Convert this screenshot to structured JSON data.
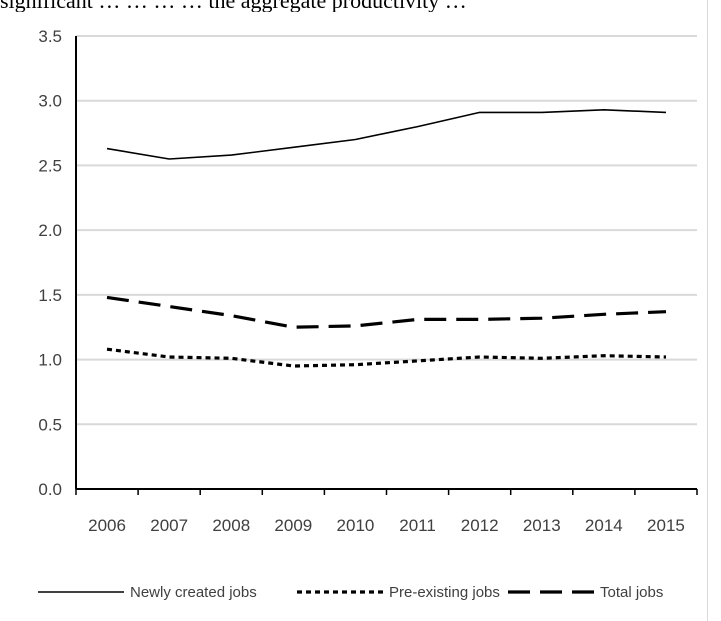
{
  "top_text": "significant … … … … the aggregate productivity …",
  "chart_data": {
    "type": "line",
    "title": "",
    "xlabel": "",
    "ylabel": "",
    "categories": [
      "2006",
      "2007",
      "2008",
      "2009",
      "2010",
      "2011",
      "2012",
      "2013",
      "2014",
      "2015"
    ],
    "ylim": [
      0,
      3.5
    ],
    "yticks": [
      "0.0",
      "0.5",
      "1.0",
      "1.5",
      "2.0",
      "2.5",
      "3.0",
      "3.5"
    ],
    "grid": true,
    "legend_position": "bottom",
    "series": [
      {
        "name": "Newly created jobs",
        "style": "solid",
        "color": "#000000",
        "values": [
          2.63,
          2.55,
          2.58,
          2.64,
          2.7,
          2.8,
          2.91,
          2.91,
          2.93,
          2.91
        ]
      },
      {
        "name": "Pre-existing jobs",
        "style": "dotted",
        "color": "#000000",
        "values": [
          1.08,
          1.02,
          1.01,
          0.95,
          0.96,
          0.99,
          1.02,
          1.01,
          1.03,
          1.02
        ]
      },
      {
        "name": "Total jobs",
        "style": "dashed",
        "color": "#000000",
        "values": [
          1.48,
          1.41,
          1.34,
          1.25,
          1.26,
          1.31,
          1.31,
          1.32,
          1.35,
          1.37
        ]
      }
    ]
  }
}
